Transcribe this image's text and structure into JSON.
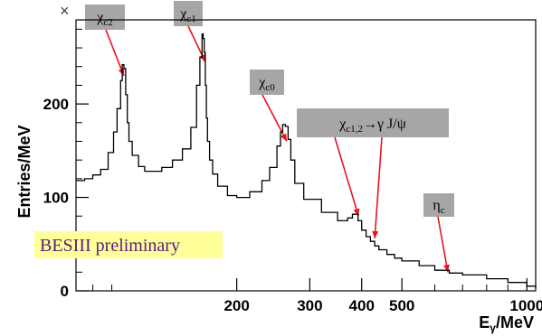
{
  "chart_data": {
    "type": "line",
    "xlabel": "Eγ/MeV",
    "ylabel": "Entries/MeV",
    "x_scale": "log",
    "xlim": [
      82,
      1050
    ],
    "ylim": [
      0,
      290
    ],
    "x_ticks": [
      200,
      300,
      400,
      500,
      1000
    ],
    "y_ticks": [
      0,
      100,
      200
    ],
    "watermark": "BESIII preliminary",
    "multiplier_mark": "×",
    "colors": {
      "line": "#000000",
      "arrow": "#e8141c",
      "label_box": "#a6a6a6",
      "watermark_bg": "#ffff99",
      "watermark_text": "#5a1a7a"
    },
    "series": [
      {
        "x": [
          82,
          86,
          90,
          94,
          98,
          101,
          103,
          105,
          106,
          107,
          108,
          109,
          110,
          112,
          116,
          120,
          126,
          132,
          140,
          148,
          155,
          160,
          163,
          165,
          166,
          167,
          168,
          169,
          170,
          172,
          175,
          180,
          190,
          200,
          215,
          230,
          240,
          250,
          255,
          258,
          262,
          266,
          270,
          276,
          290,
          320,
          350,
          370,
          380,
          386,
          392,
          400,
          410,
          420,
          430,
          440,
          460,
          480,
          500,
          550,
          600,
          650,
          700,
          800,
          900,
          1000,
          1050
        ],
        "y": [
          118,
          120,
          124,
          130,
          148,
          170,
          195,
          225,
          242,
          238,
          210,
          180,
          160,
          145,
          133,
          128,
          128,
          132,
          140,
          152,
          175,
          220,
          250,
          275,
          270,
          255,
          220,
          185,
          160,
          140,
          125,
          112,
          102,
          100,
          106,
          118,
          132,
          155,
          170,
          178,
          176,
          162,
          140,
          115,
          98,
          84,
          75,
          78,
          82,
          82,
          75,
          65,
          58,
          53,
          48,
          44,
          39,
          35,
          32,
          27,
          22,
          19,
          17,
          13,
          9,
          5,
          3
        ]
      }
    ],
    "annotations": [
      {
        "label": "χc2",
        "x": 107,
        "y": 230
      },
      {
        "label": "χc1",
        "x": 168,
        "y": 245
      },
      {
        "label": "χc0",
        "x": 264,
        "y": 160
      },
      {
        "label": "χc1,2→γ J/ψ",
        "points": [
          {
            "x": 393,
            "y": 80
          },
          {
            "x": 430,
            "y": 56
          }
        ]
      },
      {
        "label": "ηc",
        "x": 645,
        "y": 20
      }
    ]
  }
}
